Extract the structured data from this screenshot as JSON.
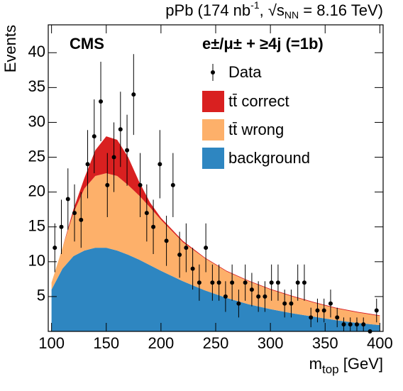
{
  "chart_data": {
    "type": "area",
    "stacked": true,
    "title": "pPb (174 nb",
    "title_sup": "-1",
    "title_mid": ", √s",
    "title_sub": "NN",
    "title_end": " = 8.16 TeV)",
    "brand": "CMS",
    "channel": "e±/μ± + ≥4j (=1b)",
    "x_label": "m",
    "x_label_sub": "top",
    "x_label_end": " [GeV]",
    "y_label": "Events",
    "xlim": [
      97,
      403
    ],
    "xticks": [
      100,
      150,
      200,
      250,
      300,
      350,
      400
    ],
    "ylim": [
      0,
      44
    ],
    "yticks": [
      5,
      10,
      15,
      20,
      25,
      30,
      35,
      40
    ],
    "x": [
      100,
      110,
      120,
      130,
      140,
      150,
      160,
      170,
      180,
      190,
      200,
      220,
      240,
      260,
      280,
      300,
      320,
      340,
      360,
      380,
      400
    ],
    "series": [
      {
        "name": "background",
        "color": "#2e86c1",
        "values": [
          6,
          9,
          10.8,
          11.6,
          12,
          12,
          11.6,
          11,
          10.3,
          9.5,
          8.7,
          7.2,
          5.9,
          4.8,
          3.9,
          3.2,
          2.6,
          2.1,
          1.6,
          1.2,
          0.9
        ]
      },
      {
        "name": "tt̄ wrong",
        "color": "#fdb06a",
        "values": [
          1,
          3,
          6.2,
          8.9,
          10.3,
          10.7,
          10.7,
          10,
          9.2,
          8.3,
          7.3,
          5.6,
          4.6,
          3.8,
          3.3,
          2.8,
          2.4,
          2.0,
          1.7,
          1.5,
          1.3
        ]
      },
      {
        "name": "tt̄ correct",
        "color": "#d92020",
        "values": [
          0,
          0,
          0.5,
          1.5,
          3.7,
          5.3,
          5.2,
          4,
          2,
          0.7,
          0.3,
          0.2,
          0.1,
          0.1,
          0.1,
          0.1,
          0.1,
          0.1,
          0.1,
          0.1,
          0.1
        ]
      }
    ],
    "data": {
      "name": "Data",
      "color": "#000000",
      "x": [
        103,
        109,
        115,
        121,
        127,
        133,
        139,
        145,
        151,
        157,
        163,
        169,
        175,
        181,
        187,
        193,
        199,
        205,
        211,
        217,
        223,
        229,
        235,
        241,
        247,
        253,
        259,
        265,
        271,
        277,
        283,
        289,
        295,
        301,
        307,
        313,
        319,
        325,
        331,
        337,
        343,
        349,
        355,
        361,
        367,
        373,
        379,
        385,
        391,
        397
      ],
      "values": [
        12,
        15,
        19,
        17,
        16,
        24,
        28,
        33,
        21,
        25,
        29,
        26,
        34,
        21,
        17,
        15,
        24,
        13,
        21,
        11,
        12,
        9,
        7,
        12,
        7,
        7,
        5,
        7,
        4,
        7,
        6,
        5,
        5,
        7,
        7,
        4,
        4,
        7,
        7,
        2,
        3,
        3,
        4,
        2,
        1,
        1,
        1,
        1,
        0,
        3
      ],
      "errors": [
        3.5,
        3.9,
        4.4,
        4.1,
        4,
        4.9,
        5.3,
        5.7,
        4.6,
        5,
        5.4,
        5.1,
        5.8,
        4.6,
        4.1,
        3.9,
        4.9,
        3.6,
        4.6,
        3.3,
        3.5,
        3,
        2.6,
        3.5,
        2.6,
        2.6,
        2.2,
        2.6,
        2,
        2.6,
        2.4,
        2.2,
        2.2,
        2.6,
        2.6,
        2,
        2,
        2.6,
        2.6,
        1.4,
        1.7,
        1.7,
        2,
        1.4,
        1,
        1,
        1,
        1,
        0,
        1.7
      ]
    }
  }
}
